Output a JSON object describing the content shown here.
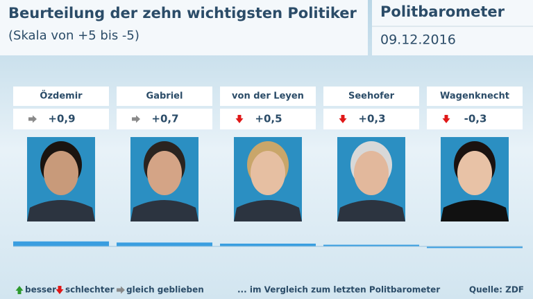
{
  "chart_data": {
    "type": "bar",
    "title": "Beurteilung der zehn wichtigsten Politiker",
    "subtitle": "(Skala von +5 bis -5)",
    "brand": "Politbarometer",
    "date": "09.12.2016",
    "categories": [
      "Özdemir",
      "Gabriel",
      "von der Leyen",
      "Seehofer",
      "Wagenknecht"
    ],
    "values": [
      0.9,
      0.7,
      0.5,
      0.3,
      -0.3
    ],
    "value_labels": [
      "+0,9",
      "+0,7",
      "+0,5",
      "+0,3",
      "-0,3"
    ],
    "trend": [
      "right",
      "right",
      "down",
      "down",
      "down"
    ],
    "color": "#3a9ee0",
    "ylim": [
      -5,
      5
    ],
    "legend": [
      {
        "label": "besser",
        "arrow": "up",
        "color": "#2e9a2e"
      },
      {
        "label": "schlechter",
        "arrow": "down",
        "color": "#e01818"
      },
      {
        "label": "gleich geblieben",
        "arrow": "right",
        "color": "#8a8a8a"
      }
    ],
    "note": "... im Vergleich zum letzten Politbarometer",
    "source": "Quelle: ZDF"
  }
}
